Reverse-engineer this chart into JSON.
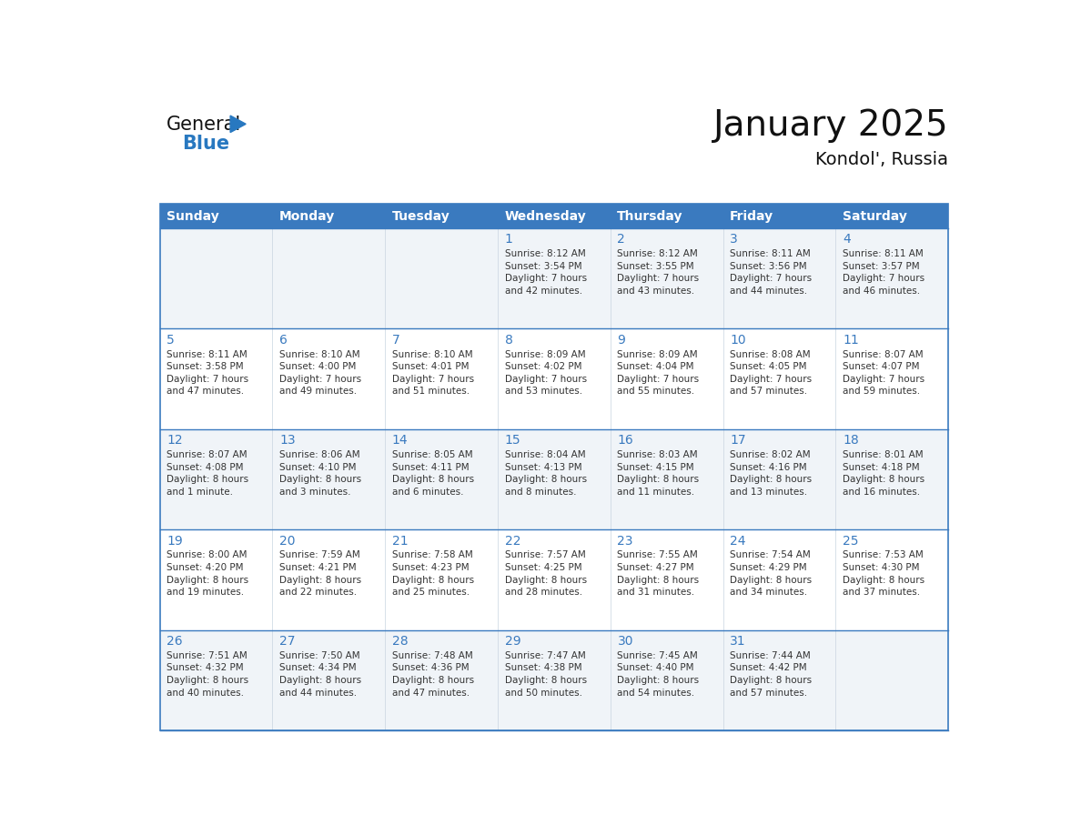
{
  "title": "January 2025",
  "subtitle": "Kondol', Russia",
  "header_color": "#3a7abf",
  "header_text_color": "#ffffff",
  "cell_bg_color": "#ffffff",
  "grid_line_color": "#3a7abf",
  "day_text_color": "#3a7abf",
  "info_text_color": "#333333",
  "days_of_week": [
    "Sunday",
    "Monday",
    "Tuesday",
    "Wednesday",
    "Thursday",
    "Friday",
    "Saturday"
  ],
  "weeks": [
    [
      {
        "day": "",
        "info": ""
      },
      {
        "day": "",
        "info": ""
      },
      {
        "day": "",
        "info": ""
      },
      {
        "day": "1",
        "info": "Sunrise: 8:12 AM\nSunset: 3:54 PM\nDaylight: 7 hours\nand 42 minutes."
      },
      {
        "day": "2",
        "info": "Sunrise: 8:12 AM\nSunset: 3:55 PM\nDaylight: 7 hours\nand 43 minutes."
      },
      {
        "day": "3",
        "info": "Sunrise: 8:11 AM\nSunset: 3:56 PM\nDaylight: 7 hours\nand 44 minutes."
      },
      {
        "day": "4",
        "info": "Sunrise: 8:11 AM\nSunset: 3:57 PM\nDaylight: 7 hours\nand 46 minutes."
      }
    ],
    [
      {
        "day": "5",
        "info": "Sunrise: 8:11 AM\nSunset: 3:58 PM\nDaylight: 7 hours\nand 47 minutes."
      },
      {
        "day": "6",
        "info": "Sunrise: 8:10 AM\nSunset: 4:00 PM\nDaylight: 7 hours\nand 49 minutes."
      },
      {
        "day": "7",
        "info": "Sunrise: 8:10 AM\nSunset: 4:01 PM\nDaylight: 7 hours\nand 51 minutes."
      },
      {
        "day": "8",
        "info": "Sunrise: 8:09 AM\nSunset: 4:02 PM\nDaylight: 7 hours\nand 53 minutes."
      },
      {
        "day": "9",
        "info": "Sunrise: 8:09 AM\nSunset: 4:04 PM\nDaylight: 7 hours\nand 55 minutes."
      },
      {
        "day": "10",
        "info": "Sunrise: 8:08 AM\nSunset: 4:05 PM\nDaylight: 7 hours\nand 57 minutes."
      },
      {
        "day": "11",
        "info": "Sunrise: 8:07 AM\nSunset: 4:07 PM\nDaylight: 7 hours\nand 59 minutes."
      }
    ],
    [
      {
        "day": "12",
        "info": "Sunrise: 8:07 AM\nSunset: 4:08 PM\nDaylight: 8 hours\nand 1 minute."
      },
      {
        "day": "13",
        "info": "Sunrise: 8:06 AM\nSunset: 4:10 PM\nDaylight: 8 hours\nand 3 minutes."
      },
      {
        "day": "14",
        "info": "Sunrise: 8:05 AM\nSunset: 4:11 PM\nDaylight: 8 hours\nand 6 minutes."
      },
      {
        "day": "15",
        "info": "Sunrise: 8:04 AM\nSunset: 4:13 PM\nDaylight: 8 hours\nand 8 minutes."
      },
      {
        "day": "16",
        "info": "Sunrise: 8:03 AM\nSunset: 4:15 PM\nDaylight: 8 hours\nand 11 minutes."
      },
      {
        "day": "17",
        "info": "Sunrise: 8:02 AM\nSunset: 4:16 PM\nDaylight: 8 hours\nand 13 minutes."
      },
      {
        "day": "18",
        "info": "Sunrise: 8:01 AM\nSunset: 4:18 PM\nDaylight: 8 hours\nand 16 minutes."
      }
    ],
    [
      {
        "day": "19",
        "info": "Sunrise: 8:00 AM\nSunset: 4:20 PM\nDaylight: 8 hours\nand 19 minutes."
      },
      {
        "day": "20",
        "info": "Sunrise: 7:59 AM\nSunset: 4:21 PM\nDaylight: 8 hours\nand 22 minutes."
      },
      {
        "day": "21",
        "info": "Sunrise: 7:58 AM\nSunset: 4:23 PM\nDaylight: 8 hours\nand 25 minutes."
      },
      {
        "day": "22",
        "info": "Sunrise: 7:57 AM\nSunset: 4:25 PM\nDaylight: 8 hours\nand 28 minutes."
      },
      {
        "day": "23",
        "info": "Sunrise: 7:55 AM\nSunset: 4:27 PM\nDaylight: 8 hours\nand 31 minutes."
      },
      {
        "day": "24",
        "info": "Sunrise: 7:54 AM\nSunset: 4:29 PM\nDaylight: 8 hours\nand 34 minutes."
      },
      {
        "day": "25",
        "info": "Sunrise: 7:53 AM\nSunset: 4:30 PM\nDaylight: 8 hours\nand 37 minutes."
      }
    ],
    [
      {
        "day": "26",
        "info": "Sunrise: 7:51 AM\nSunset: 4:32 PM\nDaylight: 8 hours\nand 40 minutes."
      },
      {
        "day": "27",
        "info": "Sunrise: 7:50 AM\nSunset: 4:34 PM\nDaylight: 8 hours\nand 44 minutes."
      },
      {
        "day": "28",
        "info": "Sunrise: 7:48 AM\nSunset: 4:36 PM\nDaylight: 8 hours\nand 47 minutes."
      },
      {
        "day": "29",
        "info": "Sunrise: 7:47 AM\nSunset: 4:38 PM\nDaylight: 8 hours\nand 50 minutes."
      },
      {
        "day": "30",
        "info": "Sunrise: 7:45 AM\nSunset: 4:40 PM\nDaylight: 8 hours\nand 54 minutes."
      },
      {
        "day": "31",
        "info": "Sunrise: 7:44 AM\nSunset: 4:42 PM\nDaylight: 8 hours\nand 57 minutes."
      },
      {
        "day": "",
        "info": ""
      }
    ]
  ],
  "logo_general_color": "#111111",
  "logo_blue_color": "#2878c0",
  "logo_triangle_color": "#2878c0",
  "title_fontsize": 28,
  "subtitle_fontsize": 14,
  "header_fontsize": 10,
  "day_fontsize": 10,
  "info_fontsize": 7.5
}
